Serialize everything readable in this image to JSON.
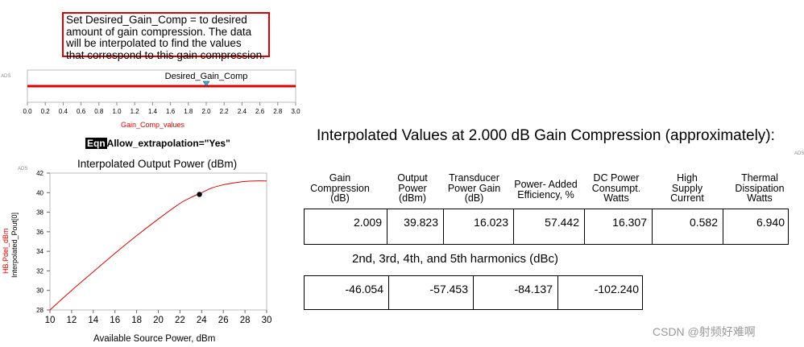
{
  "note": {
    "lines": [
      "Set Desired_Gain_Comp = to desired",
      "amount of gain compression.  The data",
      "will be interpolated to find the values",
      "that correspond to this gain compression."
    ]
  },
  "ads_tag": "ADS",
  "slider": {
    "label": "Desired_Gain_Comp",
    "x_axis_label": "Gain_Comp_values",
    "ticks": [
      "0.0",
      "0.2",
      "0.4",
      "0.6",
      "0.8",
      "1.0",
      "1.2",
      "1.4",
      "1.6",
      "1.8",
      "2.0",
      "2.2",
      "2.4",
      "2.6",
      "2.8",
      "3.0"
    ],
    "marker_value": 2.0,
    "range": [
      0.0,
      3.0
    ]
  },
  "equation": {
    "tag": "Eqn",
    "text": "Allow_extrapolation=\"Yes\""
  },
  "chart_data": {
    "type": "line",
    "title": "Interpolated Output Power (dBm)",
    "xlabel": "Available Source Power, dBm",
    "ylabel_series": [
      "HB.Pdel_dBm",
      "Interpolated_Pout[0]"
    ],
    "xlim": [
      10,
      30
    ],
    "ylim": [
      28,
      42
    ],
    "x_ticks": [
      "10",
      "12",
      "14",
      "16",
      "18",
      "20",
      "22",
      "24",
      "26",
      "28",
      "30"
    ],
    "y_ticks": [
      "28",
      "30",
      "32",
      "34",
      "36",
      "38",
      "40",
      "42"
    ],
    "series": [
      {
        "color": "#e00000",
        "x": [
          10,
          12,
          14,
          16,
          18,
          20,
          22,
          23,
          24,
          25,
          26,
          27,
          28,
          29,
          30
        ],
        "y": [
          28.0,
          30.0,
          31.9,
          33.8,
          35.6,
          37.3,
          38.9,
          39.5,
          40.0,
          40.5,
          40.8,
          41.0,
          41.15,
          41.2,
          41.2
        ]
      }
    ],
    "marker": {
      "x": 23.8,
      "y": 39.823
    }
  },
  "results": {
    "title": "Interpolated Values at 2.000 dB Gain Compression (approximately):",
    "headers": [
      [
        "Gain",
        "Compression",
        "(dB)"
      ],
      [
        "Output",
        "Power",
        "(dBm)"
      ],
      [
        "Transducer",
        "Power Gain",
        "(dB)"
      ],
      [
        "Power- Added",
        "Efficiency,  %"
      ],
      [
        "DC Power",
        "Consumpt.",
        "Watts"
      ],
      [
        "High",
        "Supply",
        "Current"
      ],
      [
        "Thermal",
        "Dissipation",
        "Watts"
      ]
    ],
    "values": [
      "2.009",
      "39.823",
      "16.023",
      "57.442",
      "16.307",
      "0.582",
      "6.940"
    ]
  },
  "harmonics": {
    "title": "2nd, 3rd, 4th, and 5th harmonics (dBc)",
    "values": [
      "-46.054",
      "-57.453",
      "-84.137",
      "-102.240"
    ]
  },
  "watermark": "CSDN @射频好难啊"
}
